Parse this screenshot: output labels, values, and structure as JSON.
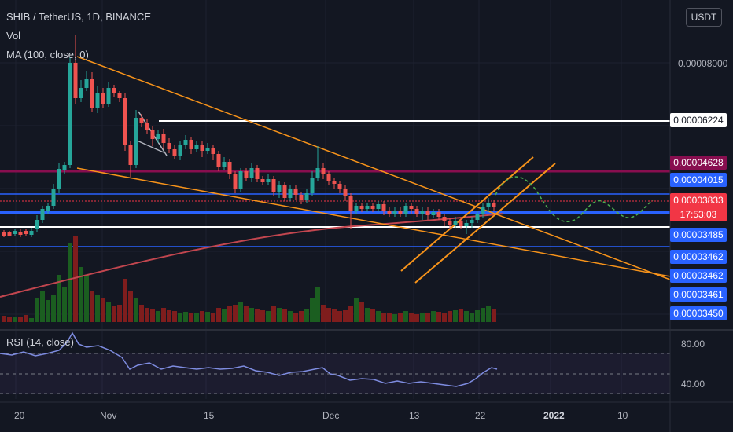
{
  "header": {
    "symbol_line": "SHIB / TetherUS, 1D, BINANCE",
    "vol_label": "Vol",
    "ma_label": "MA (100, close, 0)",
    "rsi_label": "RSI (14, close)",
    "currency_button": "USDT"
  },
  "price_axis": {
    "top_tick": "0.00008000",
    "rsi_ticks": [
      "80.00",
      "40.00"
    ]
  },
  "price_tags": [
    {
      "label": "0.00006224",
      "bg": "#ffffff",
      "fg": "#131722"
    },
    {
      "label": "0.00004628",
      "bg": "#880e4f",
      "fg": "#ffffff"
    },
    {
      "label": "0.00004015",
      "bg": "#2962ff",
      "fg": "#ffffff"
    },
    {
      "label": "0.00003833",
      "bg": "#f23645",
      "fg": "#ffffff",
      "sub": "17:53:03"
    },
    {
      "label": "0.00003485",
      "bg": "#2962ff",
      "fg": "#ffffff"
    },
    {
      "label": "0.00003462",
      "bg": "#2962ff",
      "fg": "#ffffff"
    },
    {
      "label": "0.00003462",
      "bg": "#2962ff",
      "fg": "#ffffff"
    },
    {
      "label": "0.00003461",
      "bg": "#2962ff",
      "fg": "#ffffff"
    },
    {
      "label": "0.00003450",
      "bg": "#2962ff",
      "fg": "#ffffff"
    }
  ],
  "time_axis": [
    "20",
    "Nov",
    "15",
    "Dec",
    "13",
    "22",
    "2022",
    "10"
  ],
  "colors": {
    "up": "#26a69a",
    "down": "#ef5350",
    "vol_up": "#1b5e20",
    "vol_down": "#7f1d1d",
    "ma": "#c2464f",
    "rsi": "#7e8ce0",
    "trend": "#f7931a"
  },
  "chart_data": {
    "type": "candlestick",
    "symbol": "SHIB / TetherUS",
    "interval": "1D",
    "exchange": "BINANCE",
    "x_ticks": [
      "20",
      "Nov",
      "15",
      "Dec",
      "13",
      "22",
      "2022",
      "10"
    ],
    "y_ticks": [
      "0.00008000"
    ],
    "horizontal_levels": [
      6.224e-05,
      4.628e-05,
      4.015e-05,
      3.833e-05,
      3.485e-05,
      3.462e-05,
      3.462e-05,
      3.461e-05,
      3.45e-05
    ],
    "last_price": 3.833e-05,
    "countdown": "17:53:03",
    "rsi": {
      "period": 14,
      "source": "close",
      "levels": [
        80,
        40
      ]
    },
    "ma": {
      "length": 100,
      "source": "close",
      "offset": 0
    }
  }
}
